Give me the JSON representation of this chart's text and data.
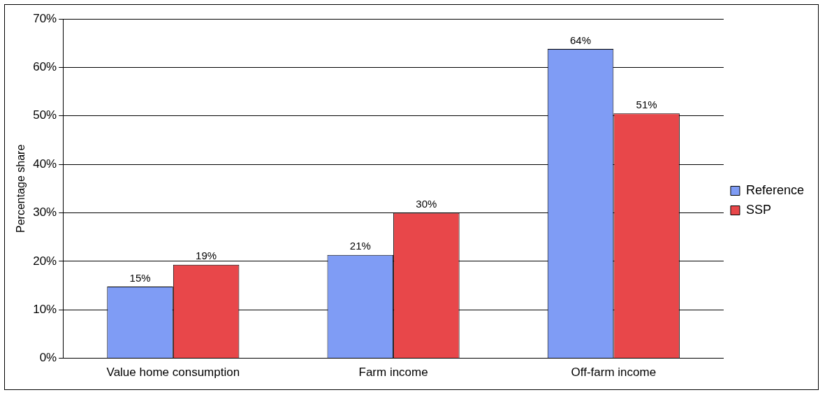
{
  "chart_data": {
    "type": "bar",
    "ylabel": "Percentage share",
    "categories": [
      "Value home consumption",
      "Farm income",
      "Off-farm income"
    ],
    "series": [
      {
        "name": "Reference",
        "color": "#7f9cf5",
        "values": [
          14.8,
          21.3,
          63.8
        ],
        "value_labels": [
          "15%",
          "21%",
          "64%"
        ]
      },
      {
        "name": "SSP",
        "color": "#e8474a",
        "values": [
          19.3,
          30.0,
          50.5
        ],
        "value_labels": [
          "19%",
          "30%",
          "51%"
        ]
      }
    ],
    "ylim": [
      0,
      70
    ],
    "yticks": [
      {
        "value": 0,
        "label": "0%"
      },
      {
        "value": 10,
        "label": "10%"
      },
      {
        "value": 20,
        "label": "20%"
      },
      {
        "value": 30,
        "label": "30%"
      },
      {
        "value": 40,
        "label": "40%"
      },
      {
        "value": 50,
        "label": "50%"
      },
      {
        "value": 60,
        "label": "60%"
      },
      {
        "value": 70,
        "label": "70%"
      }
    ],
    "grid": "y",
    "legend": "right"
  }
}
